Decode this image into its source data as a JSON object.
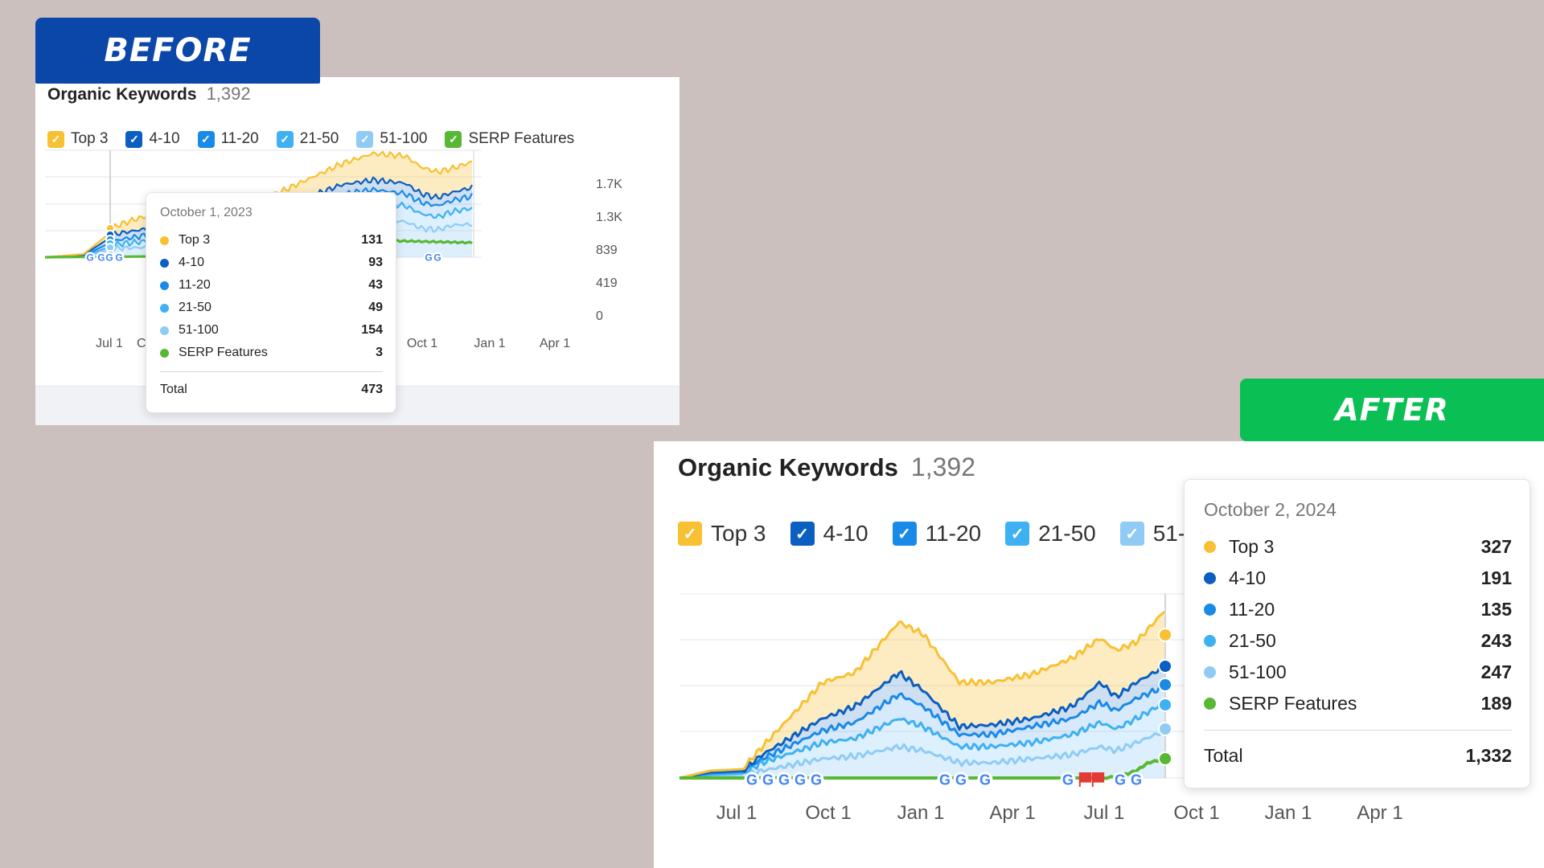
{
  "badges": {
    "before": "BEFORE",
    "after": "AFTER"
  },
  "colors": {
    "top3": "#f8c033",
    "pos4_10": "#0b5fc0",
    "pos11_20": "#1a8ae8",
    "pos21_50": "#3fb0f2",
    "pos51_100": "#90cbf6",
    "serp": "#57b833"
  },
  "before": {
    "title": "Organic Keywords",
    "count": "1,392",
    "legend": [
      "Top 3",
      "4-10",
      "11-20",
      "21-50",
      "51-100",
      "SERP Features"
    ],
    "x_ticks": [
      "Jul 1",
      "Oct 1",
      "Jan 1",
      "Apr 1"
    ],
    "hidden_x_tick_fragment": "C",
    "y_ticks": [
      "1.7K",
      "1.3K",
      "839",
      "419",
      "0"
    ],
    "tooltip": {
      "date": "October 1, 2023",
      "rows": [
        {
          "label": "Top 3",
          "value": "131"
        },
        {
          "label": "4-10",
          "value": "93"
        },
        {
          "label": "11-20",
          "value": "43"
        },
        {
          "label": "21-50",
          "value": "49"
        },
        {
          "label": "51-100",
          "value": "154"
        },
        {
          "label": "SERP Features",
          "value": "3"
        }
      ],
      "total_label": "Total",
      "total_value": "473"
    }
  },
  "after": {
    "title": "Organic Keywords",
    "count": "1,392",
    "legend": [
      "Top 3",
      "4-10",
      "11-20",
      "21-50",
      "51-"
    ],
    "x_ticks": [
      "Jul 1",
      "Oct 1",
      "Jan 1",
      "Apr 1",
      "Jul 1",
      "Oct 1",
      "Jan 1",
      "Apr 1"
    ],
    "tooltip": {
      "date": "October 2, 2024",
      "rows": [
        {
          "label": "Top 3",
          "value": "327"
        },
        {
          "label": "4-10",
          "value": "191"
        },
        {
          "label": "11-20",
          "value": "135"
        },
        {
          "label": "21-50",
          "value": "243"
        },
        {
          "label": "51-100",
          "value": "247"
        },
        {
          "label": "SERP Features",
          "value": "189"
        }
      ],
      "total_label": "Total",
      "total_value": "1,332"
    }
  },
  "icons": {
    "google": "google-g-icon",
    "flag": "red-flag-icon",
    "check": "check-icon"
  }
}
